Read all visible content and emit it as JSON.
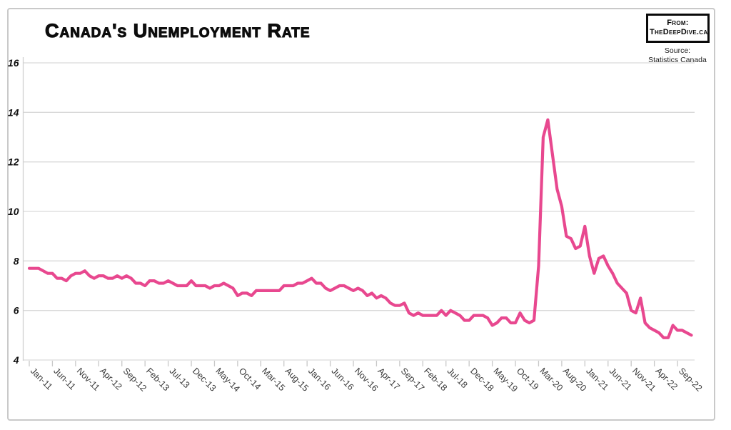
{
  "title": "Canada's Unemployment Rate",
  "badge": {
    "line1": "From:",
    "line2": "TheDeepDive.ca"
  },
  "source": {
    "line1": "Source:",
    "line2": "Statistics Canada"
  },
  "chart_data": {
    "type": "line",
    "title": "Canada's Unemployment Rate",
    "series_name": "Unemployment rate (%)",
    "frequency": "monthly",
    "x_start": "Jan-11",
    "x_end": "Dec-22",
    "x_tick_every_months": 5,
    "x_tick_labels": [
      "Jan-11",
      "Jun-11",
      "Nov-11",
      "Apr-12",
      "Sep-12",
      "Feb-13",
      "Jul-13",
      "Dec-13",
      "May-14",
      "Oct-14",
      "Mar-15",
      "Aug-15",
      "Jan-16",
      "Jun-16",
      "Nov-16",
      "Apr-17",
      "Sep-17",
      "Feb-18",
      "Jul-18",
      "Dec-18",
      "May-19",
      "Oct-19",
      "Mar-20",
      "Aug-20",
      "Jan-21",
      "Jun-21",
      "Nov-21",
      "Apr-22",
      "Sep-22"
    ],
    "y_ticks": [
      4,
      6,
      8,
      10,
      12,
      14,
      16
    ],
    "ylim": [
      4,
      16.8
    ],
    "xlabel": "",
    "ylabel": "",
    "grid": "horizontal",
    "legend": "none",
    "line_color": "#e8488f",
    "grid_color": "#d9d9d9",
    "values": [
      7.7,
      7.7,
      7.7,
      7.6,
      7.5,
      7.5,
      7.3,
      7.3,
      7.2,
      7.4,
      7.5,
      7.5,
      7.6,
      7.4,
      7.3,
      7.4,
      7.4,
      7.3,
      7.3,
      7.4,
      7.3,
      7.4,
      7.3,
      7.1,
      7.1,
      7.0,
      7.2,
      7.2,
      7.1,
      7.1,
      7.2,
      7.1,
      7.0,
      7.0,
      7.0,
      7.2,
      7.0,
      7.0,
      7.0,
      6.9,
      7.0,
      7.0,
      7.1,
      7.0,
      6.9,
      6.6,
      6.7,
      6.7,
      6.6,
      6.8,
      6.8,
      6.8,
      6.8,
      6.8,
      6.8,
      7.0,
      7.0,
      7.0,
      7.1,
      7.1,
      7.2,
      7.3,
      7.1,
      7.1,
      6.9,
      6.8,
      6.9,
      7.0,
      7.0,
      6.9,
      6.8,
      6.9,
      6.8,
      6.6,
      6.7,
      6.5,
      6.6,
      6.5,
      6.3,
      6.2,
      6.2,
      6.3,
      5.9,
      5.8,
      5.9,
      5.8,
      5.8,
      5.8,
      5.8,
      6.0,
      5.8,
      6.0,
      5.9,
      5.8,
      5.6,
      5.6,
      5.8,
      5.8,
      5.8,
      5.7,
      5.4,
      5.5,
      5.7,
      5.7,
      5.5,
      5.5,
      5.9,
      5.6,
      5.5,
      5.6,
      7.8,
      13.0,
      13.7,
      12.3,
      10.9,
      10.2,
      9.0,
      8.9,
      8.5,
      8.6,
      9.4,
      8.2,
      7.5,
      8.1,
      8.2,
      7.8,
      7.5,
      7.1,
      6.9,
      6.7,
      6.0,
      5.9,
      6.5,
      5.5,
      5.3,
      5.2,
      5.1,
      4.9,
      4.9,
      5.4,
      5.2,
      5.2,
      5.1,
      5.0
    ]
  }
}
